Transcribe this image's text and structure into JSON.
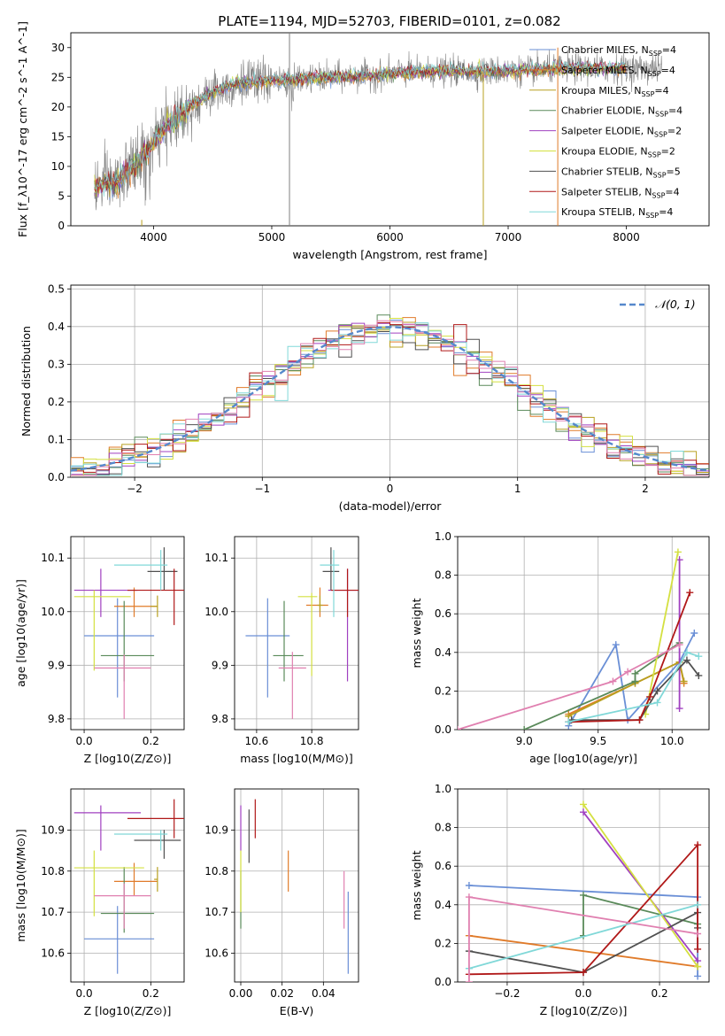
{
  "figure_title": "PLATE=1194, MJD=52703, FIBERID=0101, z=0.082",
  "colors": {
    "chab_miles": "#6a8fd6",
    "salp_miles": "#e07b2a",
    "krou_miles": "#b8a020",
    "chab_elodie": "#5a8a5a",
    "salp_elodie": "#a040c0",
    "krou_elodie": "#d4e040",
    "chab_stelib": "#505050",
    "salp_stelib": "#b01818",
    "krou_stelib": "#80d8d8",
    "pink": "#e080b0",
    "gaussian": "#5588cc",
    "grid": "#b0b0b0",
    "data": "#808080"
  },
  "chart_data": [
    {
      "id": "spectrum",
      "type": "line",
      "title": "PLATE=1194, MJD=52703, FIBERID=0101, z=0.082",
      "xlabel": "wavelength [Angstrom, rest frame]",
      "ylabel": "Flux [f_λ10^-17 erg cm^-2 s^-1 A^-1]",
      "xlim": [
        3300,
        8700
      ],
      "ylim": [
        0,
        32.5
      ],
      "xticks": [
        4000,
        5000,
        6000,
        7000,
        8000
      ],
      "yticks": [
        0,
        5,
        10,
        15,
        20,
        25,
        30
      ],
      "grid": false,
      "legend_position": "upper-right",
      "continuum": {
        "x": [
          3500,
          3700,
          3900,
          4000,
          4100,
          4300,
          4500,
          4700,
          4900,
          5100,
          5300,
          5500,
          5800,
          6100,
          6500,
          7000,
          7500,
          8000,
          8300
        ],
        "y": [
          6.5,
          7.5,
          11.5,
          14,
          16.5,
          20,
          22.5,
          24,
          24.3,
          24.5,
          24.7,
          25,
          25.2,
          25.8,
          26,
          26,
          26.5,
          26.5,
          26.5
        ]
      },
      "series": [
        {
          "name": "Chabrier MILES, N_SSP=4",
          "label_main": "Chabrier MILES, N",
          "label_sub": "SSP",
          "label_end": "=4",
          "color_key": "chab_miles"
        },
        {
          "name": "Salpeter MILES, N_SSP=4",
          "label_main": "Salpeter MILES, N",
          "label_sub": "SSP",
          "label_end": "=4",
          "color_key": "salp_miles"
        },
        {
          "name": "Kroupa MILES, N_SSP=4",
          "label_main": "Kroupa MILES, N",
          "label_sub": "SSP",
          "label_end": "=4",
          "color_key": "krou_miles"
        },
        {
          "name": "Chabrier ELODIE, N_SSP=4",
          "label_main": "Chabrier ELODIE, N",
          "label_sub": "SSP",
          "label_end": "=4",
          "color_key": "chab_elodie"
        },
        {
          "name": "Salpeter ELODIE, N_SSP=2",
          "label_main": "Salpeter ELODIE, N",
          "label_sub": "SSP",
          "label_end": "=2",
          "color_key": "salp_elodie"
        },
        {
          "name": "Kroupa ELODIE, N_SSP=2",
          "label_main": "Kroupa ELODIE, N",
          "label_sub": "SSP",
          "label_end": "=2",
          "color_key": "krou_elodie"
        },
        {
          "name": "Chabrier STELIB, N_SSP=5",
          "label_main": "Chabrier STELIB, N",
          "label_sub": "SSP",
          "label_end": "=5",
          "color_key": "chab_stelib"
        },
        {
          "name": "Salpeter STELIB, N_SSP=4",
          "label_main": "Salpeter STELIB, N",
          "label_sub": "SSP",
          "label_end": "=4",
          "color_key": "salp_stelib"
        },
        {
          "name": "Kroupa STELIB, N_SSP=4",
          "label_main": "Kroupa STELIB, N",
          "label_sub": "SSP",
          "label_end": "=4",
          "color_key": "krou_stelib"
        }
      ],
      "spikes": [
        {
          "x": 5150,
          "y": 32.5,
          "color_key": "data"
        },
        {
          "x": 6790,
          "y": 25,
          "color_key": "krou_miles"
        },
        {
          "x": 7420,
          "y": 30,
          "color_key": "salp_miles"
        },
        {
          "x": 3900,
          "y": 1,
          "color_key": "krou_miles"
        }
      ]
    },
    {
      "id": "residuals",
      "type": "histogram",
      "xlabel": "(data-model)/error",
      "ylabel": "Normed distribution",
      "xlim": [
        -2.5,
        2.5
      ],
      "ylim": [
        0,
        0.51
      ],
      "xticks": [
        -2,
        -1,
        0,
        1,
        2
      ],
      "yticks": [
        0.0,
        0.1,
        0.2,
        0.3,
        0.4,
        0.5
      ],
      "grid": true,
      "legend_position": "upper-right",
      "gaussian_label": "𝒩(0, 1)",
      "bin_width": 0.1,
      "bin_start": -2.5
    },
    {
      "id": "age_vs_Z",
      "type": "errorbar",
      "xlabel": "Z [log10(Z/Z⊙)]",
      "ylabel": "age [log10(age/yr)]",
      "xlim": [
        -0.04,
        0.3
      ],
      "ylim": [
        9.78,
        10.14
      ],
      "xticks": [
        0.0,
        0.2
      ],
      "yticks": [
        9.8,
        9.9,
        10.0,
        10.1
      ],
      "grid": true,
      "points": [
        {
          "color_key": "chab_miles",
          "x": 0.1,
          "y": 9.955,
          "xl": 0.0,
          "xh": 0.21,
          "yl": 9.84,
          "yh": 10.025
        },
        {
          "color_key": "salp_miles",
          "x": 0.15,
          "y": 10.01,
          "xl": 0.09,
          "xh": 0.22,
          "yl": 9.99,
          "yh": 10.045
        },
        {
          "color_key": "krou_miles",
          "x": 0.22,
          "y": 10.01,
          "xl": 0.2,
          "xh": 0.22,
          "yl": 9.99,
          "yh": 10.03
        },
        {
          "color_key": "chab_elodie",
          "x": 0.12,
          "y": 9.918,
          "xl": 0.05,
          "xh": 0.21,
          "yl": 9.87,
          "yh": 10.02
        },
        {
          "color_key": "salp_elodie",
          "x": 0.05,
          "y": 10.04,
          "xl": -0.03,
          "xh": 0.16,
          "yl": 9.99,
          "yh": 10.08
        },
        {
          "color_key": "krou_elodie",
          "x": 0.03,
          "y": 10.028,
          "xl": -0.03,
          "xh": 0.14,
          "yl": 9.89,
          "yh": 10.04
        },
        {
          "color_key": "chab_stelib",
          "x": 0.24,
          "y": 10.075,
          "xl": 0.19,
          "xh": 0.28,
          "yl": 10.04,
          "yh": 10.12
        },
        {
          "color_key": "salp_stelib",
          "x": 0.27,
          "y": 10.04,
          "xl": 0.13,
          "xh": 0.3,
          "yl": 9.975,
          "yh": 10.08
        },
        {
          "color_key": "krou_stelib",
          "x": 0.23,
          "y": 10.087,
          "xl": 0.09,
          "xh": 0.25,
          "yl": 10.04,
          "yh": 10.115
        },
        {
          "color_key": "pink",
          "x": 0.12,
          "y": 9.895,
          "xl": 0.03,
          "xh": 0.2,
          "yl": 9.8,
          "yh": 9.92
        }
      ]
    },
    {
      "id": "age_vs_mass",
      "type": "errorbar",
      "xlabel": "mass [log10(M/M⊙)]",
      "ylabel": "",
      "xlim": [
        10.52,
        10.97
      ],
      "ylim": [
        9.78,
        10.14
      ],
      "xticks": [
        10.6,
        10.8
      ],
      "yticks": [
        9.8,
        9.9,
        10.0,
        10.1
      ],
      "grid": true,
      "points": [
        {
          "color_key": "chab_miles",
          "x": 10.64,
          "y": 9.955,
          "xl": 10.56,
          "xh": 10.72,
          "yl": 9.84,
          "yh": 10.025
        },
        {
          "color_key": "salp_miles",
          "x": 10.83,
          "y": 10.012,
          "xl": 10.78,
          "xh": 10.86,
          "yl": 9.99,
          "yh": 10.045
        },
        {
          "color_key": "krou_miles",
          "x": 10.83,
          "y": 10.012,
          "xl": 10.82,
          "xh": 10.84,
          "yl": 10.0,
          "yh": 10.03
        },
        {
          "color_key": "chab_elodie",
          "x": 10.7,
          "y": 9.918,
          "xl": 10.66,
          "xh": 10.77,
          "yl": 9.87,
          "yh": 10.02
        },
        {
          "color_key": "salp_elodie",
          "x": 10.93,
          "y": 10.04,
          "xl": 10.86,
          "xh": 10.97,
          "yl": 9.87,
          "yh": 10.08
        },
        {
          "color_key": "krou_elodie",
          "x": 10.8,
          "y": 10.028,
          "xl": 10.75,
          "xh": 10.82,
          "yl": 9.88,
          "yh": 10.035
        },
        {
          "color_key": "chab_stelib",
          "x": 10.87,
          "y": 10.075,
          "xl": 10.84,
          "xh": 10.9,
          "yl": 10.04,
          "yh": 10.12
        },
        {
          "color_key": "salp_stelib",
          "x": 10.93,
          "y": 10.04,
          "xl": 10.87,
          "xh": 10.97,
          "yl": 9.99,
          "yh": 10.08
        },
        {
          "color_key": "krou_stelib",
          "x": 10.88,
          "y": 10.087,
          "xl": 10.83,
          "xh": 10.9,
          "yl": 9.99,
          "yh": 10.115
        },
        {
          "color_key": "pink",
          "x": 10.73,
          "y": 9.895,
          "xl": 10.68,
          "xh": 10.78,
          "yl": 9.8,
          "yh": 9.925
        }
      ]
    },
    {
      "id": "weight_vs_age",
      "type": "line",
      "xlabel": "age [log10(age/yr)]",
      "ylabel": "mass weight",
      "xlim": [
        8.55,
        10.25
      ],
      "ylim": [
        0.0,
        1.0
      ],
      "xticks": [
        9.0,
        9.5,
        10.0
      ],
      "yticks": [
        0.0,
        0.2,
        0.4,
        0.6,
        0.8,
        1.0
      ],
      "grid": true,
      "series": [
        {
          "color_key": "chab_miles",
          "x": [
            9.3,
            9.62,
            9.7,
            10.05,
            10.15
          ],
          "y": [
            0.02,
            0.44,
            0.05,
            0.35,
            0.5
          ]
        },
        {
          "color_key": "salp_miles",
          "x": [
            9.3,
            9.75,
            10.05,
            10.08
          ],
          "y": [
            0.08,
            0.24,
            0.35,
            0.24
          ]
        },
        {
          "color_key": "krou_miles",
          "x": [
            9.3,
            9.75,
            10.05,
            10.08
          ],
          "y": [
            0.07,
            0.24,
            0.35,
            0.25
          ]
        },
        {
          "color_key": "chab_elodie",
          "x": [
            9.0,
            9.75,
            9.75,
            10.05
          ],
          "y": [
            0.0,
            0.25,
            0.29,
            0.45
          ]
        },
        {
          "color_key": "salp_elodie",
          "x": [
            10.05,
            10.05
          ],
          "y": [
            0.11,
            0.88
          ]
        },
        {
          "color_key": "krou_elodie",
          "x": [
            9.82,
            10.04
          ],
          "y": [
            0.08,
            0.92
          ]
        },
        {
          "color_key": "chab_stelib",
          "x": [
            9.32,
            9.78,
            9.9,
            10.1,
            10.18
          ],
          "y": [
            0.05,
            0.05,
            0.2,
            0.36,
            0.28
          ]
        },
        {
          "color_key": "salp_stelib",
          "x": [
            9.3,
            9.78,
            9.85,
            10.12
          ],
          "y": [
            0.04,
            0.05,
            0.17,
            0.71
          ]
        },
        {
          "color_key": "krou_stelib",
          "x": [
            9.3,
            9.9,
            10.1,
            10.18
          ],
          "y": [
            0.04,
            0.14,
            0.4,
            0.38
          ]
        },
        {
          "color_key": "pink",
          "x": [
            8.55,
            9.6,
            9.7,
            10.05
          ],
          "y": [
            0.0,
            0.25,
            0.3,
            0.44
          ]
        }
      ]
    },
    {
      "id": "mass_vs_Z",
      "type": "errorbar",
      "xlabel": "Z [log10(Z/Z⊙)]",
      "ylabel": "mass [log10(M/M⊙)]",
      "xlim": [
        -0.04,
        0.3
      ],
      "ylim": [
        10.53,
        11.0
      ],
      "xticks": [
        0.0,
        0.2
      ],
      "yticks": [
        10.6,
        10.7,
        10.8,
        10.9
      ],
      "grid": true,
      "points": [
        {
          "color_key": "chab_miles",
          "x": 0.1,
          "y": 10.635,
          "xl": 0.0,
          "xh": 0.21,
          "yl": 10.55,
          "yh": 10.715
        },
        {
          "color_key": "salp_miles",
          "x": 0.15,
          "y": 10.775,
          "xl": 0.09,
          "xh": 0.22,
          "yl": 10.74,
          "yh": 10.82
        },
        {
          "color_key": "krou_miles",
          "x": 0.22,
          "y": 10.78,
          "xl": 0.21,
          "xh": 0.22,
          "yl": 10.75,
          "yh": 10.81
        },
        {
          "color_key": "chab_elodie",
          "x": 0.12,
          "y": 10.697,
          "xl": 0.05,
          "xh": 0.21,
          "yl": 10.65,
          "yh": 10.81
        },
        {
          "color_key": "salp_elodie",
          "x": 0.05,
          "y": 10.942,
          "xl": -0.03,
          "xh": 0.17,
          "yl": 10.85,
          "yh": 10.96
        },
        {
          "color_key": "krou_elodie",
          "x": 0.03,
          "y": 10.808,
          "xl": -0.03,
          "xh": 0.18,
          "yl": 10.69,
          "yh": 10.85
        },
        {
          "color_key": "chab_stelib",
          "x": 0.24,
          "y": 10.875,
          "xl": 0.15,
          "xh": 0.29,
          "yl": 10.83,
          "yh": 10.9
        },
        {
          "color_key": "salp_stelib",
          "x": 0.27,
          "y": 10.928,
          "xl": 0.13,
          "xh": 0.3,
          "yl": 10.88,
          "yh": 10.975
        },
        {
          "color_key": "krou_stelib",
          "x": 0.23,
          "y": 10.89,
          "xl": 0.09,
          "xh": 0.25,
          "yl": 10.85,
          "yh": 10.9
        },
        {
          "color_key": "pink",
          "x": 0.12,
          "y": 10.74,
          "xl": 0.03,
          "xh": 0.2,
          "yl": 10.66,
          "yh": 10.77
        }
      ]
    },
    {
      "id": "mass_vs_ebv",
      "type": "errorbar",
      "xlabel": "E(B-V)",
      "ylabel": "",
      "xlim": [
        -0.003,
        0.057
      ],
      "ylim": [
        10.53,
        11.0
      ],
      "xticks": [
        0.0,
        0.02,
        0.04
      ],
      "yticks": [
        10.6,
        10.7,
        10.8,
        10.9
      ],
      "grid": true,
      "points": [
        {
          "color_key": "chab_miles",
          "x": 0.052,
          "y": 10.65,
          "xl": 0.052,
          "xh": 0.052,
          "yl": 10.55,
          "yh": 10.75
        },
        {
          "color_key": "salp_miles",
          "x": 0.023,
          "y": 10.8,
          "xl": 0.023,
          "xh": 0.023,
          "yl": 10.75,
          "yh": 10.85
        },
        {
          "color_key": "chab_elodie",
          "x": 0.0,
          "y": 10.73,
          "xl": 0.0,
          "xh": 0.0,
          "yl": 10.66,
          "yh": 10.8
        },
        {
          "color_key": "salp_elodie",
          "x": 0.0,
          "y": 10.9,
          "xl": 0.0,
          "xh": 0.0,
          "yl": 10.85,
          "yh": 10.96
        },
        {
          "color_key": "krou_elodie",
          "x": 0.0,
          "y": 10.8,
          "xl": 0.0,
          "xh": 0.0,
          "yl": 10.7,
          "yh": 10.85
        },
        {
          "color_key": "chab_stelib",
          "x": 0.004,
          "y": 10.9,
          "xl": 0.004,
          "xh": 0.004,
          "yl": 10.82,
          "yh": 10.95
        },
        {
          "color_key": "salp_stelib",
          "x": 0.007,
          "y": 10.93,
          "xl": 0.007,
          "xh": 0.007,
          "yl": 10.88,
          "yh": 10.975
        },
        {
          "color_key": "pink",
          "x": 0.05,
          "y": 10.73,
          "xl": 0.05,
          "xh": 0.05,
          "yl": 10.66,
          "yh": 10.8
        }
      ]
    },
    {
      "id": "weight_vs_Z",
      "type": "line",
      "xlabel": "Z [log10(Z/Z⊙)]",
      "ylabel": "mass weight",
      "xlim": [
        -0.33,
        0.33
      ],
      "ylim": [
        0.0,
        1.0
      ],
      "xticks": [
        -0.2,
        0.0,
        0.2
      ],
      "yticks": [
        0.0,
        0.2,
        0.4,
        0.6,
        0.8,
        1.0
      ],
      "grid": true,
      "series": [
        {
          "color_key": "chab_miles",
          "x": [
            -0.3,
            0.3,
            0.3
          ],
          "y": [
            0.5,
            0.44,
            0.03
          ]
        },
        {
          "color_key": "salp_miles",
          "x": [
            -0.3,
            0.3
          ],
          "y": [
            0.24,
            0.08
          ]
        },
        {
          "color_key": "chab_elodie",
          "x": [
            0.0,
            0.0,
            0.3
          ],
          "y": [
            0.24,
            0.45,
            0.3
          ]
        },
        {
          "color_key": "salp_elodie",
          "x": [
            0.0,
            0.3
          ],
          "y": [
            0.88,
            0.11
          ]
        },
        {
          "color_key": "krou_elodie",
          "x": [
            0.0,
            0.3
          ],
          "y": [
            0.92,
            0.08
          ]
        },
        {
          "color_key": "chab_stelib",
          "x": [
            -0.3,
            0.0,
            0.3,
            0.3
          ],
          "y": [
            0.16,
            0.05,
            0.36,
            0.28
          ]
        },
        {
          "color_key": "salp_stelib",
          "x": [
            -0.3,
            0.0,
            0.3,
            0.3
          ],
          "y": [
            0.04,
            0.05,
            0.71,
            0.17
          ]
        },
        {
          "color_key": "krou_stelib",
          "x": [
            -0.3,
            0.3
          ],
          "y": [
            0.07,
            0.4
          ]
        },
        {
          "color_key": "pink",
          "x": [
            -0.3,
            -0.3,
            0.3
          ],
          "y": [
            0.0,
            0.44,
            0.25
          ]
        }
      ]
    }
  ]
}
